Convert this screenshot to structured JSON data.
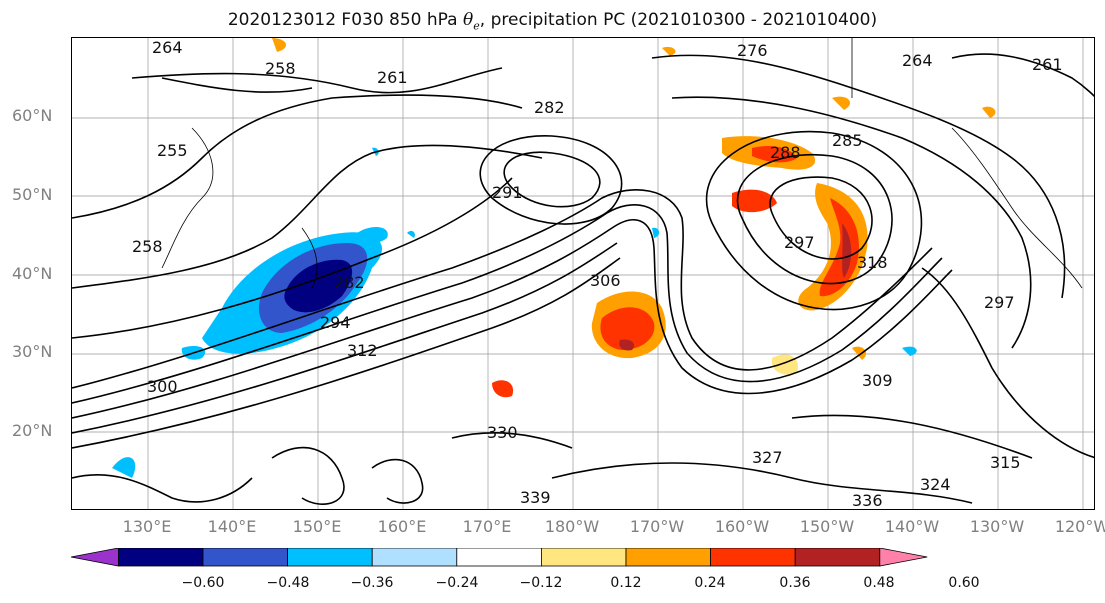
{
  "title": {
    "prefix": "2020123012 F030 850 hPa ",
    "symbol": "θe",
    "suffix": ", precipitation PC (2021010300 - 2021010400)"
  },
  "lat_labels": [
    "60°N",
    "50°N",
    "40°N",
    "30°N",
    "20°N"
  ],
  "lon_labels": [
    "130°E",
    "140°E",
    "150°E",
    "160°E",
    "170°E",
    "180°W",
    "170°W",
    "160°W",
    "150°W",
    "140°W",
    "130°W",
    "120°W"
  ],
  "contour_labels": [
    "264",
    "258",
    "261",
    "276",
    "264",
    "261",
    "282",
    "285",
    "288",
    "255",
    "258",
    "291",
    "297",
    "306",
    "282",
    "294",
    "300",
    "312",
    "309",
    "318",
    "330",
    "327",
    "315",
    "324",
    "339",
    "336",
    "297"
  ],
  "colorbar": {
    "ticks": [
      "−0.60",
      "−0.48",
      "−0.36",
      "−0.24",
      "−0.12",
      "0.12",
      "0.24",
      "0.36",
      "0.48",
      "0.60"
    ],
    "colors": [
      "#9933cc",
      "#000080",
      "#3355cc",
      "#00bfff",
      "#b0e0ff",
      "#ffffff",
      "#ffe680",
      "#ffa000",
      "#ff3300",
      "#b22222",
      "#ff80a8"
    ]
  }
}
